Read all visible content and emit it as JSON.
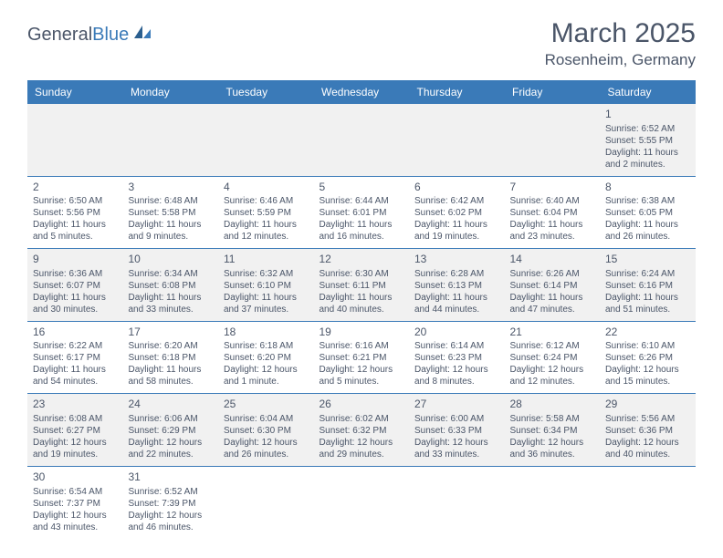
{
  "logo": {
    "text1": "General",
    "text2": "Blue"
  },
  "title": "March 2025",
  "location": "Rosenheim, Germany",
  "colors": {
    "headerBg": "#3a7ab8",
    "text": "#4a5568",
    "altRow": "#f1f1f1"
  },
  "weekdays": [
    "Sunday",
    "Monday",
    "Tuesday",
    "Wednesday",
    "Thursday",
    "Friday",
    "Saturday"
  ],
  "weeks": [
    [
      null,
      null,
      null,
      null,
      null,
      null,
      {
        "n": "1",
        "sr": "Sunrise: 6:52 AM",
        "ss": "Sunset: 5:55 PM",
        "dl": "Daylight: 11 hours and 2 minutes."
      }
    ],
    [
      {
        "n": "2",
        "sr": "Sunrise: 6:50 AM",
        "ss": "Sunset: 5:56 PM",
        "dl": "Daylight: 11 hours and 5 minutes."
      },
      {
        "n": "3",
        "sr": "Sunrise: 6:48 AM",
        "ss": "Sunset: 5:58 PM",
        "dl": "Daylight: 11 hours and 9 minutes."
      },
      {
        "n": "4",
        "sr": "Sunrise: 6:46 AM",
        "ss": "Sunset: 5:59 PM",
        "dl": "Daylight: 11 hours and 12 minutes."
      },
      {
        "n": "5",
        "sr": "Sunrise: 6:44 AM",
        "ss": "Sunset: 6:01 PM",
        "dl": "Daylight: 11 hours and 16 minutes."
      },
      {
        "n": "6",
        "sr": "Sunrise: 6:42 AM",
        "ss": "Sunset: 6:02 PM",
        "dl": "Daylight: 11 hours and 19 minutes."
      },
      {
        "n": "7",
        "sr": "Sunrise: 6:40 AM",
        "ss": "Sunset: 6:04 PM",
        "dl": "Daylight: 11 hours and 23 minutes."
      },
      {
        "n": "8",
        "sr": "Sunrise: 6:38 AM",
        "ss": "Sunset: 6:05 PM",
        "dl": "Daylight: 11 hours and 26 minutes."
      }
    ],
    [
      {
        "n": "9",
        "sr": "Sunrise: 6:36 AM",
        "ss": "Sunset: 6:07 PM",
        "dl": "Daylight: 11 hours and 30 minutes."
      },
      {
        "n": "10",
        "sr": "Sunrise: 6:34 AM",
        "ss": "Sunset: 6:08 PM",
        "dl": "Daylight: 11 hours and 33 minutes."
      },
      {
        "n": "11",
        "sr": "Sunrise: 6:32 AM",
        "ss": "Sunset: 6:10 PM",
        "dl": "Daylight: 11 hours and 37 minutes."
      },
      {
        "n": "12",
        "sr": "Sunrise: 6:30 AM",
        "ss": "Sunset: 6:11 PM",
        "dl": "Daylight: 11 hours and 40 minutes."
      },
      {
        "n": "13",
        "sr": "Sunrise: 6:28 AM",
        "ss": "Sunset: 6:13 PM",
        "dl": "Daylight: 11 hours and 44 minutes."
      },
      {
        "n": "14",
        "sr": "Sunrise: 6:26 AM",
        "ss": "Sunset: 6:14 PM",
        "dl": "Daylight: 11 hours and 47 minutes."
      },
      {
        "n": "15",
        "sr": "Sunrise: 6:24 AM",
        "ss": "Sunset: 6:16 PM",
        "dl": "Daylight: 11 hours and 51 minutes."
      }
    ],
    [
      {
        "n": "16",
        "sr": "Sunrise: 6:22 AM",
        "ss": "Sunset: 6:17 PM",
        "dl": "Daylight: 11 hours and 54 minutes."
      },
      {
        "n": "17",
        "sr": "Sunrise: 6:20 AM",
        "ss": "Sunset: 6:18 PM",
        "dl": "Daylight: 11 hours and 58 minutes."
      },
      {
        "n": "18",
        "sr": "Sunrise: 6:18 AM",
        "ss": "Sunset: 6:20 PM",
        "dl": "Daylight: 12 hours and 1 minute."
      },
      {
        "n": "19",
        "sr": "Sunrise: 6:16 AM",
        "ss": "Sunset: 6:21 PM",
        "dl": "Daylight: 12 hours and 5 minutes."
      },
      {
        "n": "20",
        "sr": "Sunrise: 6:14 AM",
        "ss": "Sunset: 6:23 PM",
        "dl": "Daylight: 12 hours and 8 minutes."
      },
      {
        "n": "21",
        "sr": "Sunrise: 6:12 AM",
        "ss": "Sunset: 6:24 PM",
        "dl": "Daylight: 12 hours and 12 minutes."
      },
      {
        "n": "22",
        "sr": "Sunrise: 6:10 AM",
        "ss": "Sunset: 6:26 PM",
        "dl": "Daylight: 12 hours and 15 minutes."
      }
    ],
    [
      {
        "n": "23",
        "sr": "Sunrise: 6:08 AM",
        "ss": "Sunset: 6:27 PM",
        "dl": "Daylight: 12 hours and 19 minutes."
      },
      {
        "n": "24",
        "sr": "Sunrise: 6:06 AM",
        "ss": "Sunset: 6:29 PM",
        "dl": "Daylight: 12 hours and 22 minutes."
      },
      {
        "n": "25",
        "sr": "Sunrise: 6:04 AM",
        "ss": "Sunset: 6:30 PM",
        "dl": "Daylight: 12 hours and 26 minutes."
      },
      {
        "n": "26",
        "sr": "Sunrise: 6:02 AM",
        "ss": "Sunset: 6:32 PM",
        "dl": "Daylight: 12 hours and 29 minutes."
      },
      {
        "n": "27",
        "sr": "Sunrise: 6:00 AM",
        "ss": "Sunset: 6:33 PM",
        "dl": "Daylight: 12 hours and 33 minutes."
      },
      {
        "n": "28",
        "sr": "Sunrise: 5:58 AM",
        "ss": "Sunset: 6:34 PM",
        "dl": "Daylight: 12 hours and 36 minutes."
      },
      {
        "n": "29",
        "sr": "Sunrise: 5:56 AM",
        "ss": "Sunset: 6:36 PM",
        "dl": "Daylight: 12 hours and 40 minutes."
      }
    ],
    [
      {
        "n": "30",
        "sr": "Sunrise: 6:54 AM",
        "ss": "Sunset: 7:37 PM",
        "dl": "Daylight: 12 hours and 43 minutes."
      },
      {
        "n": "31",
        "sr": "Sunrise: 6:52 AM",
        "ss": "Sunset: 7:39 PM",
        "dl": "Daylight: 12 hours and 46 minutes."
      },
      null,
      null,
      null,
      null,
      null
    ]
  ]
}
